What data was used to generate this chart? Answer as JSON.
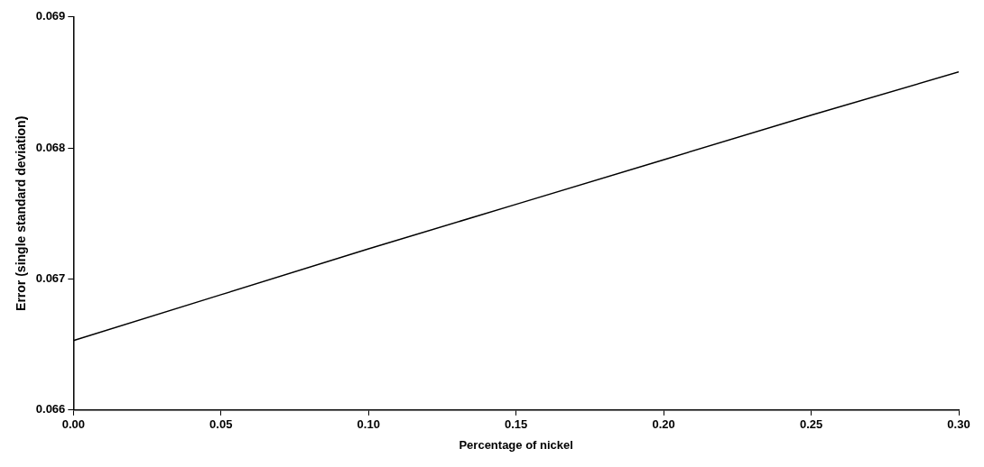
{
  "chart_data": {
    "type": "line",
    "xlabel": "Percentage of nickel",
    "ylabel": "Error (single standard deviation)",
    "x": [
      0,
      0.05,
      0.1,
      0.15,
      0.2,
      0.25,
      0.3
    ],
    "series": [
      {
        "color": "#000000",
        "values": [
          0.06653,
          0.06688,
          0.06723,
          0.06757,
          0.06791,
          0.06825,
          0.06858
        ]
      }
    ],
    "xlim": [
      0,
      0.3
    ],
    "ylim": [
      0.066,
      0.069
    ],
    "xticks": [
      {
        "value": 0,
        "label": "0.00"
      },
      0.05,
      {
        "value": 0.1,
        "label": "0.10"
      },
      0.15,
      {
        "value": 0.2,
        "label": "0.20"
      },
      0.25,
      {
        "value": 0.3,
        "label": "0.30"
      }
    ],
    "yticks": [
      0.066,
      0.067,
      0.068,
      0.069
    ],
    "grid": false,
    "legend": false,
    "marker": "none",
    "line_style": "solid"
  }
}
